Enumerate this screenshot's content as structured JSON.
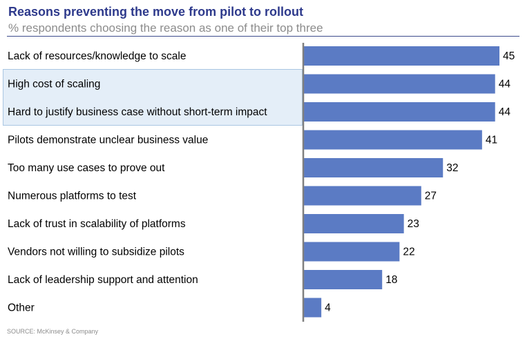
{
  "header": {
    "title": "Reasons preventing the move from pilot to rollout",
    "subtitle": "% respondents choosing the reason as one of their top three"
  },
  "footer": {
    "source": "SOURCE: McKinsey & Company"
  },
  "colors": {
    "bar": "#5b7bc4",
    "axis": "#7f7f7f",
    "title": "#2e3a8c",
    "highlight": "#e4eef8"
  },
  "chart_data": {
    "type": "bar",
    "orientation": "horizontal",
    "categories": [
      "Lack of resources/knowledge to scale",
      "High cost of scaling",
      "Hard to justify business case without short-term impact",
      "Pilots demonstrate unclear business value",
      "Too many use cases to prove out",
      "Numerous platforms to test",
      "Lack of trust in scalability of platforms",
      "Vendors not willing to subsidize pilots",
      "Lack of leadership support and attention",
      "Other"
    ],
    "values": [
      45,
      44,
      44,
      41,
      32,
      27,
      23,
      22,
      18,
      4
    ],
    "highlighted_categories": [
      "High cost of scaling",
      "Hard to justify business case without short-term impact"
    ],
    "title": "Reasons preventing the move from pilot to rollout",
    "subtitle": "% respondents choosing the reason as one of their top three",
    "xlim": [
      0,
      45
    ],
    "grid": false,
    "data_labels": true
  }
}
